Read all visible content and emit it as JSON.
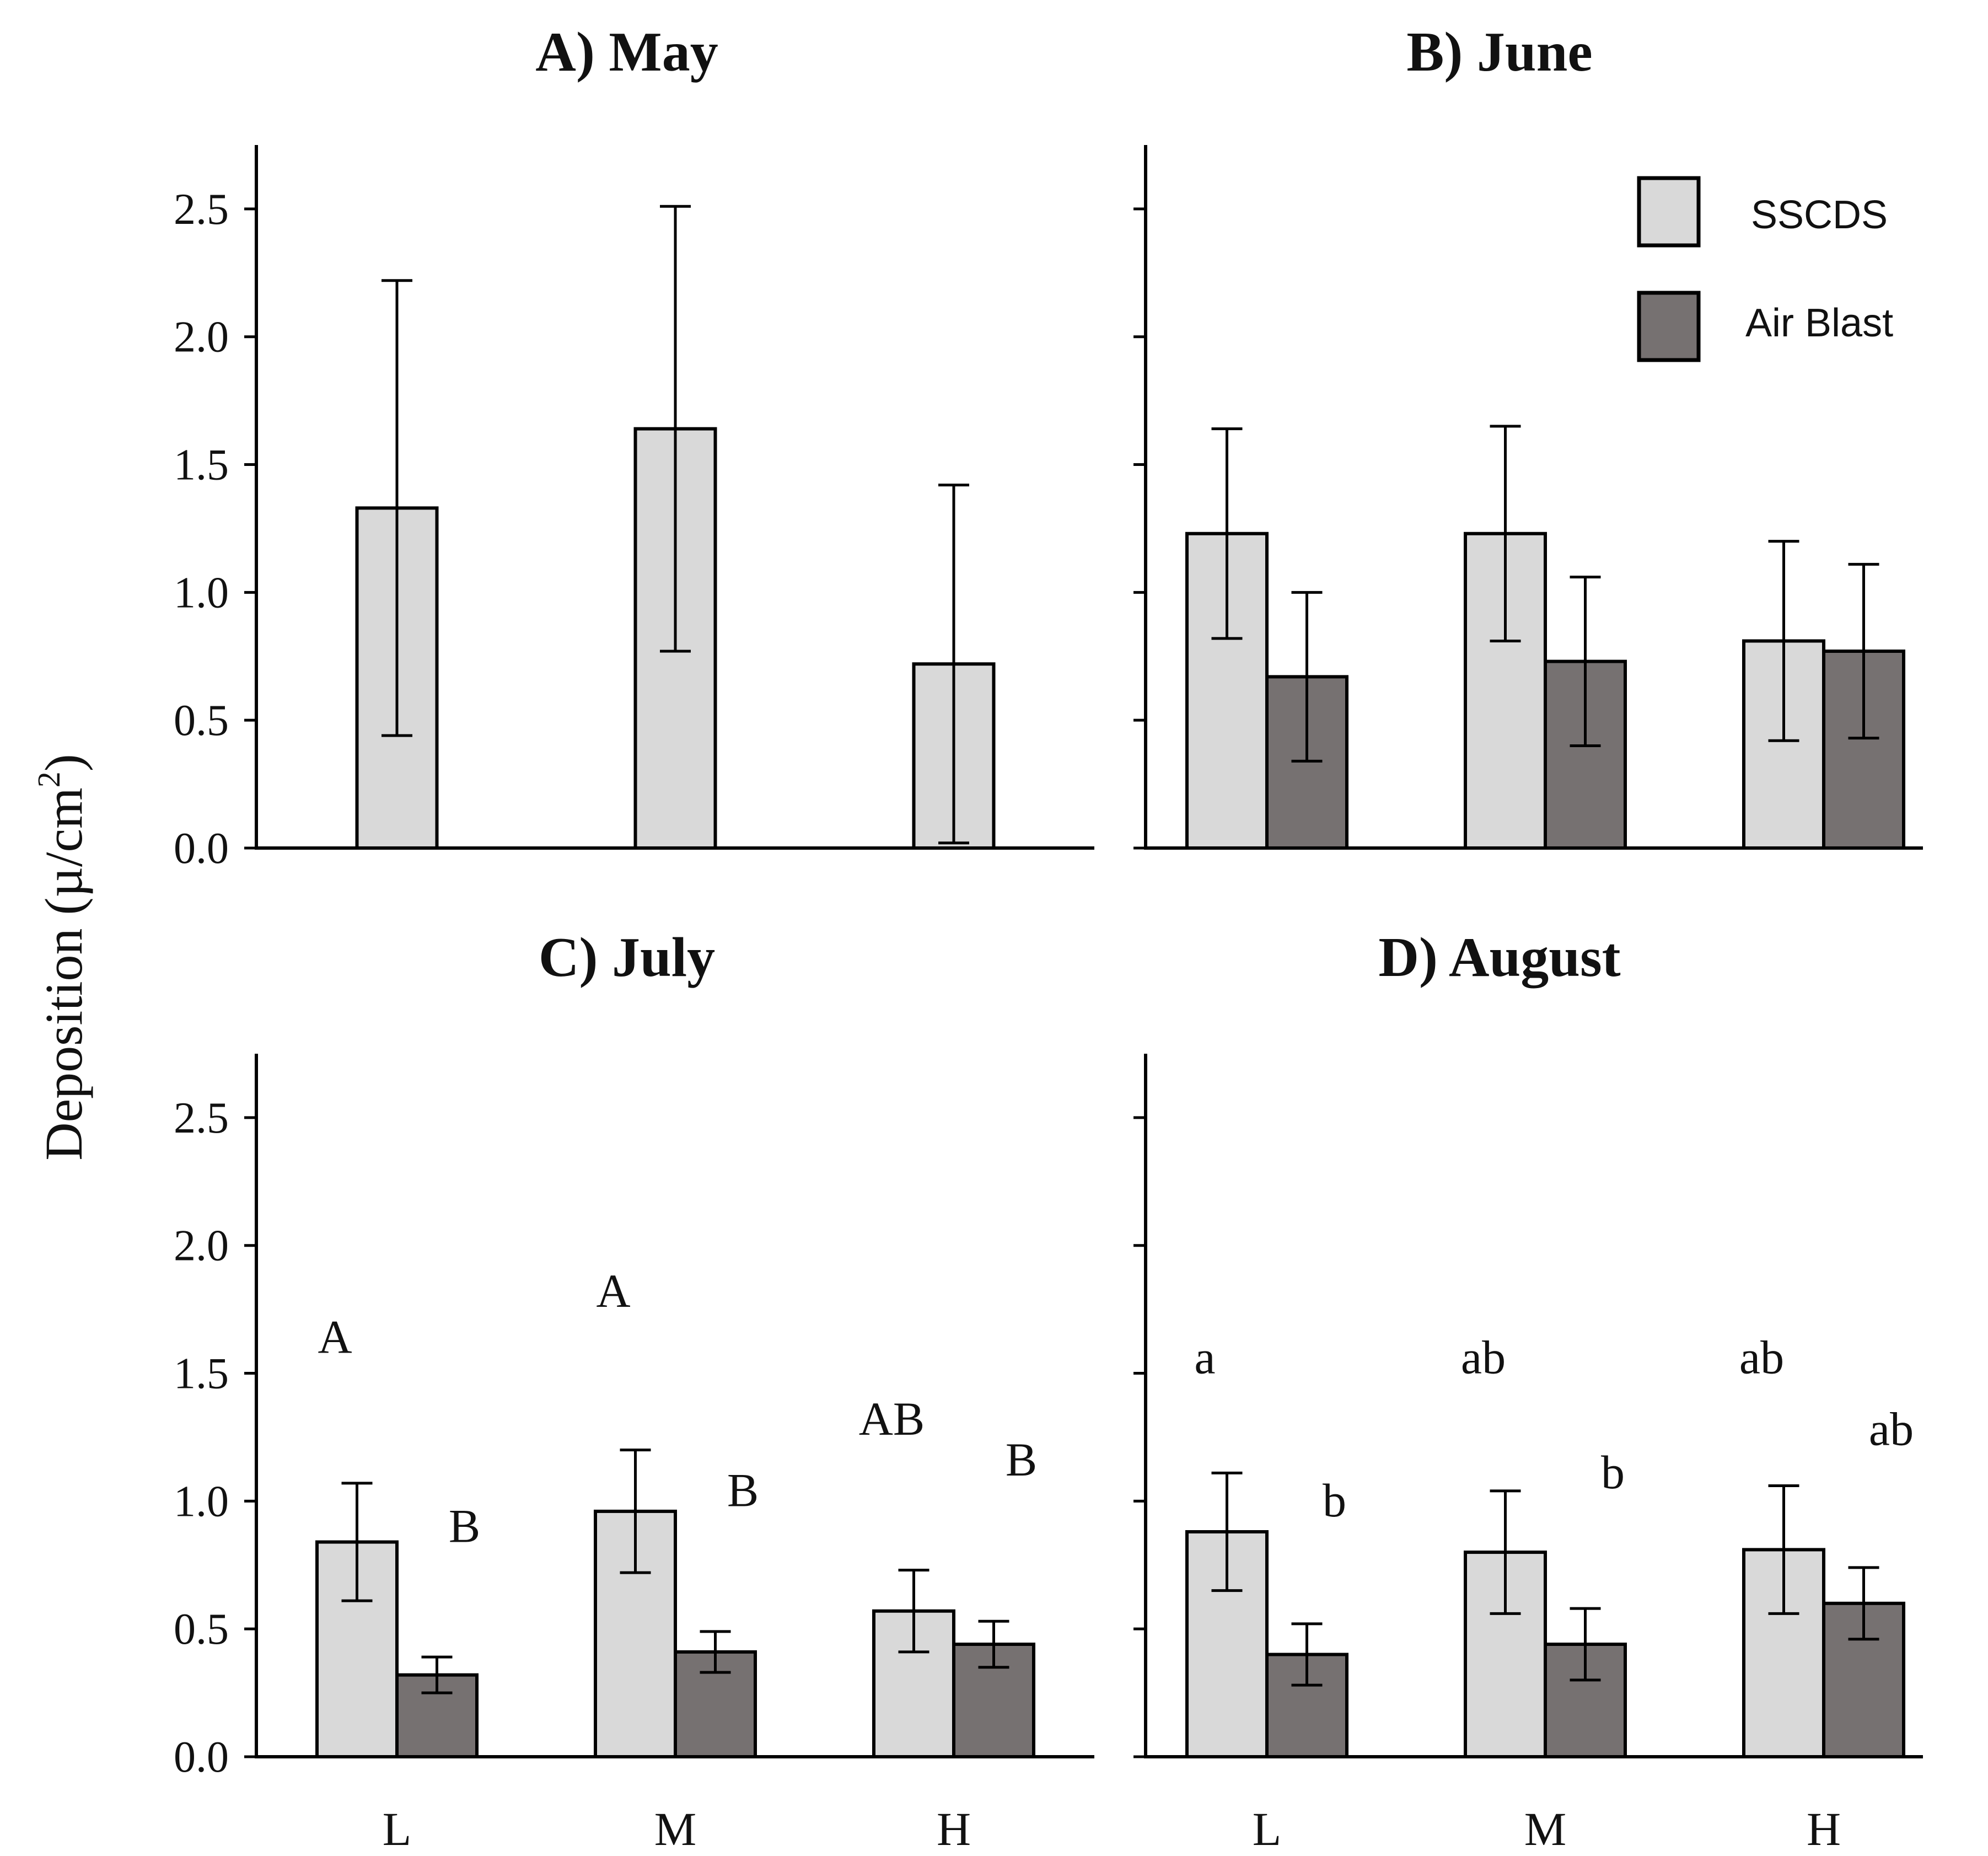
{
  "colors": {
    "SSCDS": "#d9d9d9",
    "Air Blast": "#767171",
    "stroke": "#000000"
  },
  "y_axis_label": "Deposition (µ/cm",
  "y_axis_label_sup": "2",
  "y_axis_label_close": ")",
  "legend": {
    "items": [
      {
        "label": "SSCDS",
        "color": "#d9d9d9"
      },
      {
        "label": "Air Blast",
        "color": "#767171"
      }
    ]
  },
  "chart_data": [
    {
      "type": "bar",
      "title": "A) May",
      "categories": [
        "L",
        "M",
        "H"
      ],
      "ylim": [
        0,
        2.75
      ],
      "yticks": [
        "0.0",
        "0.5",
        "1.0",
        "1.5",
        "2.0",
        "2.5"
      ],
      "show_y_ticks": true,
      "show_x_labels": false,
      "series": [
        {
          "name": "SSCDS",
          "values": [
            1.33,
            1.64,
            0.72
          ],
          "err": [
            0.89,
            0.87,
            0.7
          ]
        }
      ],
      "annotations": []
    },
    {
      "type": "bar",
      "title": "B) June",
      "categories": [
        "L",
        "M",
        "H"
      ],
      "ylim": [
        0,
        2.75
      ],
      "show_y_ticks": false,
      "show_x_labels": false,
      "series": [
        {
          "name": "SSCDS",
          "values": [
            1.23,
            1.23,
            0.81
          ],
          "err": [
            0.41,
            0.42,
            0.39
          ]
        },
        {
          "name": "Air Blast",
          "values": [
            0.67,
            0.73,
            0.77
          ],
          "err": [
            0.33,
            0.33,
            0.34
          ]
        }
      ],
      "annotations": []
    },
    {
      "type": "bar",
      "title": "C) July",
      "categories": [
        "L",
        "M",
        "H"
      ],
      "ylim": [
        0,
        2.75
      ],
      "yticks": [
        "0.0",
        "0.5",
        "1.0",
        "1.5",
        "2.0",
        "2.5"
      ],
      "show_y_ticks": true,
      "show_x_labels": true,
      "series": [
        {
          "name": "SSCDS",
          "values": [
            0.84,
            0.96,
            0.57
          ],
          "err": [
            0.23,
            0.24,
            0.16
          ]
        },
        {
          "name": "Air Blast",
          "values": [
            0.32,
            0.41,
            0.44
          ],
          "err": [
            0.07,
            0.08,
            0.09
          ]
        }
      ],
      "annotations": [
        {
          "text": "A",
          "category": "L",
          "series": "SSCDS",
          "y": 1.58
        },
        {
          "text": "B",
          "category": "L",
          "series": "Air Blast",
          "y": 0.84
        },
        {
          "text": "A",
          "category": "M",
          "series": "SSCDS",
          "y": 1.76
        },
        {
          "text": "B",
          "category": "M",
          "series": "Air Blast",
          "y": 0.98
        },
        {
          "text": "AB",
          "category": "H",
          "series": "SSCDS",
          "y": 1.26
        },
        {
          "text": "B",
          "category": "H",
          "series": "Air Blast",
          "y": 1.1
        }
      ]
    },
    {
      "type": "bar",
      "title": "D) August",
      "categories": [
        "L",
        "M",
        "H"
      ],
      "ylim": [
        0,
        2.75
      ],
      "show_y_ticks": false,
      "show_x_labels": true,
      "series": [
        {
          "name": "SSCDS",
          "values": [
            0.88,
            0.8,
            0.81
          ],
          "err": [
            0.23,
            0.24,
            0.25
          ]
        },
        {
          "name": "Air Blast",
          "values": [
            0.4,
            0.44,
            0.6
          ],
          "err": [
            0.12,
            0.14,
            0.14
          ]
        }
      ],
      "annotations": [
        {
          "text": "a",
          "category": "L",
          "series": "SSCDS",
          "y": 1.5
        },
        {
          "text": "b",
          "category": "L",
          "series": "Air Blast",
          "y": 0.94
        },
        {
          "text": "ab",
          "category": "M",
          "series": "SSCDS",
          "y": 1.5
        },
        {
          "text": "b",
          "category": "M",
          "series": "Air Blast",
          "y": 1.05
        },
        {
          "text": "ab",
          "category": "H",
          "series": "SSCDS",
          "y": 1.5
        },
        {
          "text": "ab",
          "category": "H",
          "series": "Air Blast",
          "y": 1.22
        }
      ]
    }
  ]
}
